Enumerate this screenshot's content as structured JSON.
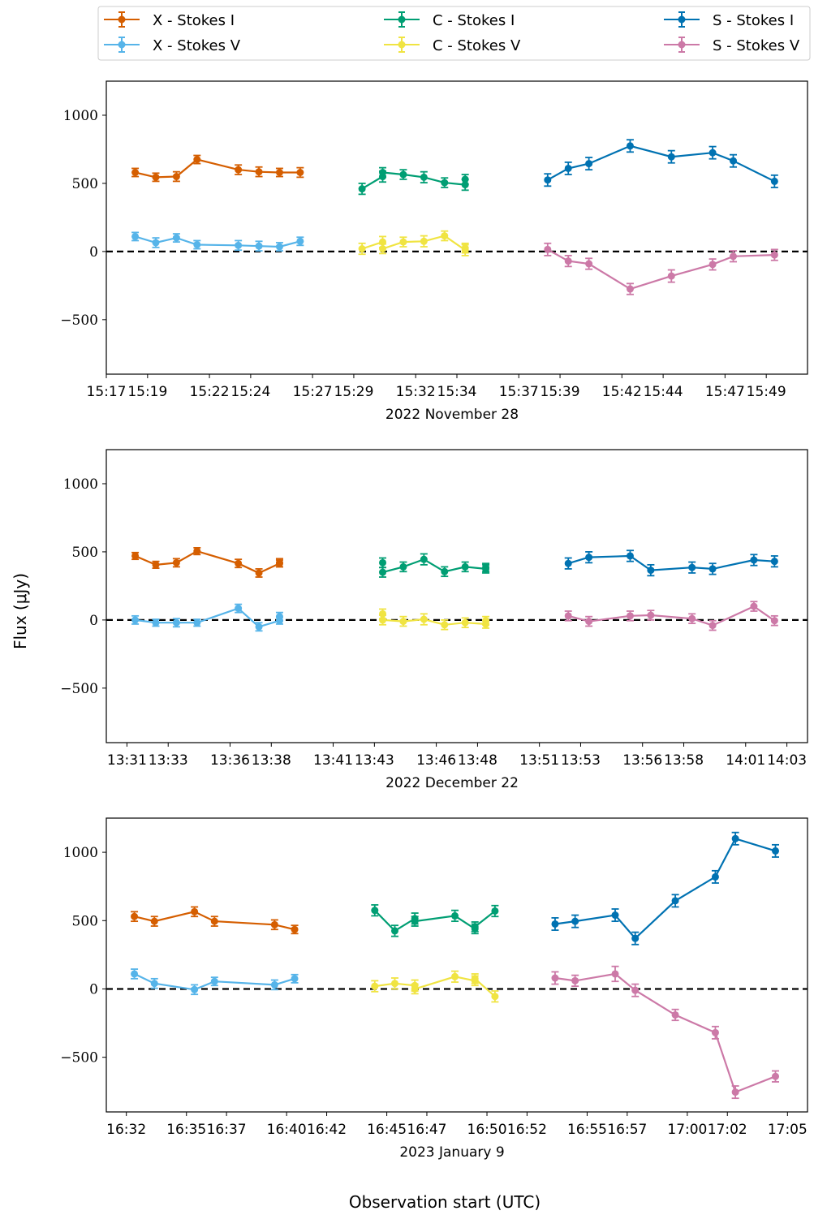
{
  "chart_data": {
    "type": "line",
    "ylabel": "Flux (μJy)",
    "xlabel": "Observation start (UTC)",
    "ylim": [
      -900,
      1250
    ],
    "yticks": [
      1000,
      500,
      0,
      -500
    ],
    "reference_line": {
      "y": 0,
      "style": "dashed",
      "color": "#000000"
    },
    "legend": {
      "position": "top",
      "entries": [
        {
          "label": "X - Stokes I",
          "color": "#d55e00"
        },
        {
          "label": "X - Stokes V",
          "color": "#56b4e9"
        },
        {
          "label": "C - Stokes I",
          "color": "#009e73"
        },
        {
          "label": "C - Stokes V",
          "color": "#f0e442"
        },
        {
          "label": "S - Stokes I",
          "color": "#0072b2"
        },
        {
          "label": "S - Stokes V",
          "color": "#cc79a7"
        }
      ]
    },
    "panels": [
      {
        "date": "2022 November 28",
        "xlim": [
          "15:17",
          "15:51"
        ],
        "xticks": [
          "15:17",
          "15:19",
          "15:22",
          "15:24",
          "15:27",
          "15:29",
          "15:32",
          "15:34",
          "15:37",
          "15:39",
          "15:42",
          "15:44",
          "15:47",
          "15:49"
        ],
        "series": [
          {
            "name": "X - Stokes I",
            "color": "#d55e00",
            "x": [
              "15:18",
              "15:19",
              "15:20",
              "15:21",
              "15:23",
              "15:24",
              "15:25",
              "15:26"
            ],
            "y": [
              580,
              545,
              550,
              675,
              600,
              585,
              580,
              580
            ],
            "err": [
              30,
              30,
              35,
              30,
              35,
              35,
              30,
              35
            ]
          },
          {
            "name": "X - Stokes V",
            "color": "#56b4e9",
            "x": [
              "15:18",
              "15:19",
              "15:20",
              "15:21",
              "15:23",
              "15:24",
              "15:25",
              "15:26"
            ],
            "y": [
              110,
              65,
              100,
              50,
              45,
              40,
              35,
              75
            ],
            "err": [
              30,
              35,
              30,
              30,
              35,
              35,
              30,
              30
            ]
          },
          {
            "name": "C - Stokes I",
            "color": "#009e73",
            "x": [
              "15:29",
              "15:30",
              "15:30",
              "15:31",
              "15:32",
              "15:33",
              "15:34",
              "15:34"
            ],
            "y": [
              460,
              550,
              580,
              565,
              545,
              505,
              490,
              530
            ],
            "err": [
              40,
              40,
              35,
              35,
              40,
              35,
              40,
              35
            ]
          },
          {
            "name": "C - Stokes V",
            "color": "#f0e442",
            "x": [
              "15:29",
              "15:30",
              "15:30",
              "15:31",
              "15:32",
              "15:33",
              "15:34",
              "15:34"
            ],
            "y": [
              20,
              70,
              20,
              70,
              75,
              115,
              10,
              25
            ],
            "err": [
              40,
              40,
              35,
              35,
              40,
              35,
              40,
              35
            ]
          },
          {
            "name": "S - Stokes I",
            "color": "#0072b2",
            "x": [
              "15:38",
              "15:39",
              "15:40",
              "15:42",
              "15:44",
              "15:46",
              "15:47",
              "15:49"
            ],
            "y": [
              525,
              610,
              645,
              775,
              695,
              725,
              665,
              515
            ],
            "err": [
              45,
              45,
              45,
              45,
              45,
              45,
              45,
              45
            ]
          },
          {
            "name": "S - Stokes V",
            "color": "#cc79a7",
            "x": [
              "15:38",
              "15:39",
              "15:40",
              "15:42",
              "15:44",
              "15:46",
              "15:47",
              "15:49"
            ],
            "y": [
              15,
              -70,
              -90,
              -275,
              -180,
              -95,
              -35,
              -25
            ],
            "err": [
              45,
              40,
              40,
              40,
              45,
              40,
              40,
              40
            ]
          }
        ]
      },
      {
        "date": "2022 December 22",
        "xlim": [
          "13:30",
          "14:04"
        ],
        "xticks": [
          "13:31",
          "13:33",
          "13:36",
          "13:38",
          "13:41",
          "13:43",
          "13:46",
          "13:48",
          "13:51",
          "13:53",
          "13:56",
          "13:58",
          "14:01",
          "14:03"
        ],
        "series": [
          {
            "name": "X - Stokes I",
            "color": "#d55e00",
            "x": [
              "13:31",
              "13:32",
              "13:33",
              "13:34",
              "13:36",
              "13:37",
              "13:38",
              "13:38"
            ],
            "y": [
              470,
              405,
              420,
              505,
              415,
              345,
              415,
              420
            ],
            "err": [
              25,
              25,
              30,
              25,
              30,
              30,
              25,
              30
            ]
          },
          {
            "name": "X - Stokes V",
            "color": "#56b4e9",
            "x": [
              "13:31",
              "13:32",
              "13:33",
              "13:34",
              "13:36",
              "13:37",
              "13:38",
              "13:38"
            ],
            "y": [
              0,
              -20,
              -20,
              -20,
              85,
              -50,
              -5,
              25
            ],
            "err": [
              30,
              25,
              30,
              25,
              30,
              30,
              25,
              30
            ]
          },
          {
            "name": "C - Stokes I",
            "color": "#009e73",
            "x": [
              "13:43",
              "13:43",
              "13:44",
              "13:45",
              "13:46",
              "13:47",
              "13:48",
              "13:48"
            ],
            "y": [
              420,
              350,
              390,
              445,
              355,
              390,
              375,
              385
            ],
            "err": [
              35,
              35,
              35,
              40,
              35,
              35,
              30,
              30
            ]
          },
          {
            "name": "C - Stokes V",
            "color": "#f0e442",
            "x": [
              "13:43",
              "13:43",
              "13:44",
              "13:45",
              "13:46",
              "13:47",
              "13:48",
              "13:48"
            ],
            "y": [
              45,
              0,
              -10,
              5,
              -35,
              -20,
              -30,
              -5
            ],
            "err": [
              35,
              35,
              35,
              40,
              35,
              35,
              30,
              30
            ]
          },
          {
            "name": "S - Stokes I",
            "color": "#0072b2",
            "x": [
              "13:52",
              "13:53",
              "13:55",
              "13:56",
              "13:58",
              "13:59",
              "14:01",
              "14:02"
            ],
            "y": [
              415,
              460,
              470,
              365,
              385,
              375,
              440,
              430
            ],
            "err": [
              40,
              40,
              40,
              40,
              40,
              40,
              40,
              40
            ]
          },
          {
            "name": "S - Stokes V",
            "color": "#cc79a7",
            "x": [
              "13:52",
              "13:53",
              "13:55",
              "13:56",
              "13:58",
              "13:59",
              "14:01",
              "14:02"
            ],
            "y": [
              30,
              -10,
              30,
              35,
              10,
              -40,
              100,
              -5
            ],
            "err": [
              35,
              35,
              35,
              35,
              35,
              35,
              35,
              35
            ]
          }
        ]
      },
      {
        "date": "2023 January 9",
        "xlim": [
          "16:31",
          "17:06"
        ],
        "xticks": [
          "16:32",
          "16:35",
          "16:37",
          "16:40",
          "16:42",
          "16:45",
          "16:47",
          "16:50",
          "16:52",
          "16:55",
          "16:57",
          "17:00",
          "17:02",
          "17:05"
        ],
        "series": [
          {
            "name": "X - Stokes I",
            "color": "#d55e00",
            "x": [
              "16:32",
              "16:33",
              "16:35",
              "16:36",
              "16:39",
              "16:40"
            ],
            "y": [
              530,
              495,
              565,
              495,
              470,
              435
            ],
            "err": [
              35,
              35,
              35,
              35,
              35,
              30
            ]
          },
          {
            "name": "X - Stokes V",
            "color": "#56b4e9",
            "x": [
              "16:32",
              "16:33",
              "16:35",
              "16:36",
              "16:39",
              "16:40"
            ],
            "y": [
              110,
              40,
              -5,
              55,
              30,
              75
            ],
            "err": [
              35,
              35,
              35,
              30,
              35,
              30
            ]
          },
          {
            "name": "C - Stokes I",
            "color": "#009e73",
            "x": [
              "16:44",
              "16:45",
              "16:46",
              "16:46",
              "16:48",
              "16:49",
              "16:49",
              "16:50"
            ],
            "y": [
              575,
              425,
              515,
              495,
              535,
              440,
              455,
              570
            ],
            "err": [
              40,
              40,
              40,
              35,
              40,
              35,
              35,
              40
            ]
          },
          {
            "name": "C - Stokes V",
            "color": "#f0e442",
            "x": [
              "16:44",
              "16:45",
              "16:46",
              "16:46",
              "16:48",
              "16:49",
              "16:49",
              "16:50"
            ],
            "y": [
              20,
              40,
              25,
              0,
              90,
              60,
              75,
              -55
            ],
            "err": [
              40,
              40,
              40,
              35,
              40,
              35,
              35,
              40
            ]
          },
          {
            "name": "S - Stokes I",
            "color": "#0072b2",
            "x": [
              "16:53",
              "16:54",
              "16:56",
              "16:57",
              "16:59",
              "17:01",
              "17:02",
              "17:04"
            ],
            "y": [
              475,
              495,
              540,
              370,
              645,
              820,
              1100,
              1010
            ],
            "err": [
              45,
              45,
              45,
              45,
              45,
              45,
              45,
              45
            ]
          },
          {
            "name": "S - Stokes V",
            "color": "#cc79a7",
            "x": [
              "16:53",
              "16:54",
              "16:56",
              "16:57",
              "16:59",
              "17:01",
              "17:02",
              "17:04"
            ],
            "y": [
              80,
              60,
              110,
              -10,
              -190,
              -320,
              -755,
              -640
            ],
            "err": [
              45,
              40,
              55,
              45,
              40,
              45,
              45,
              40
            ]
          }
        ]
      }
    ]
  }
}
